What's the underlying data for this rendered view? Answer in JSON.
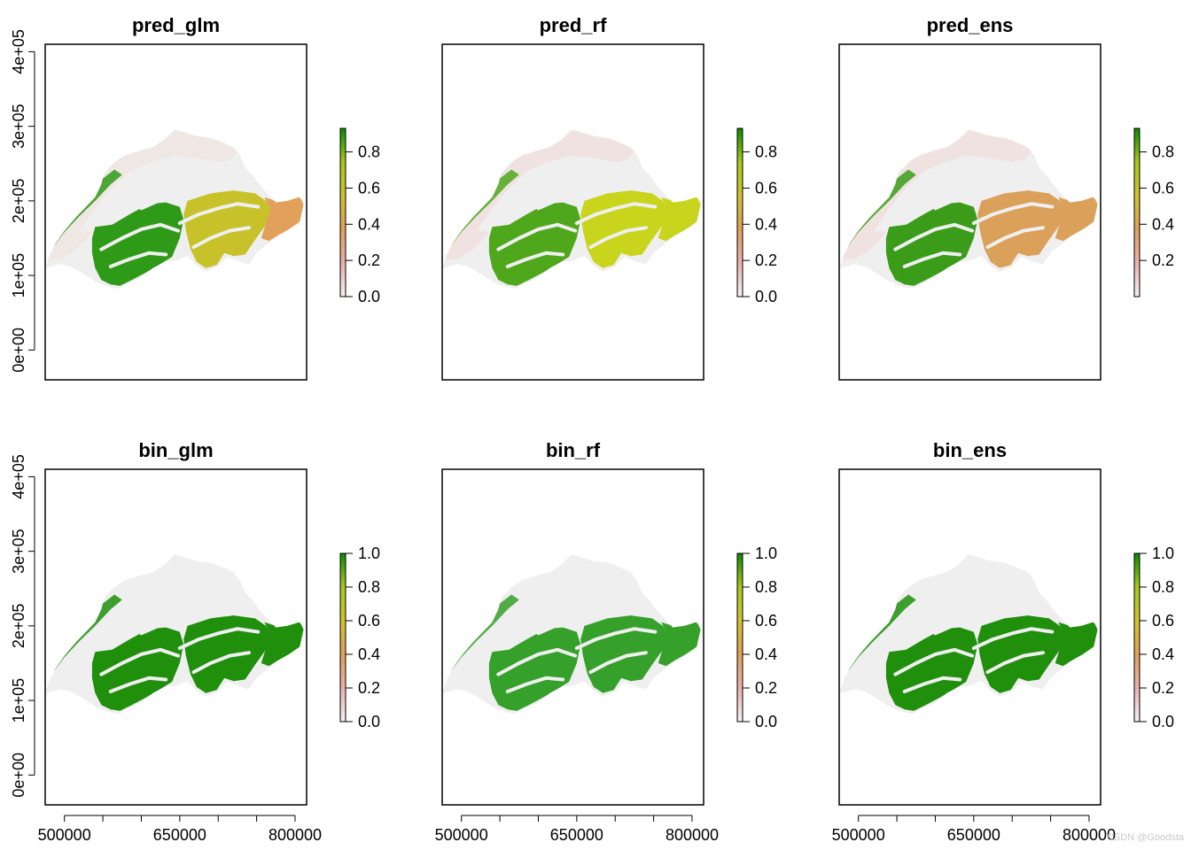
{
  "figure": {
    "watermark": "CSDN @Goodsta"
  },
  "chart_data": [
    {
      "type": "raster_map",
      "title": "pred_glm",
      "xlabel": "",
      "ylabel": "",
      "xlim": [
        475000,
        815000
      ],
      "ylim": [
        -40000,
        410000
      ],
      "xticks": [
        500000,
        550000,
        600000,
        650000,
        700000,
        750000,
        800000
      ],
      "xtick_labels": [
        "500000",
        "",
        "",
        "650000",
        "",
        "",
        "800000"
      ],
      "yticks": [
        0,
        100000,
        200000,
        300000,
        400000
      ],
      "ytick_labels": [
        "0e+00",
        "1e+05",
        "2e+05",
        "3e+05",
        "4e+05"
      ],
      "show_xaxis": false,
      "show_yaxis": true,
      "legend": {
        "type": "continuous",
        "min": 0.0,
        "max": 0.93,
        "ticks": [
          0.0,
          0.2,
          0.4,
          0.6,
          0.8
        ],
        "tick_labels": [
          "0.0",
          "0.2",
          "0.4",
          "0.6",
          "0.8"
        ],
        "colors": [
          "#f2f2f2",
          "#eab2ad",
          "#e2a15a",
          "#d1c42c",
          "#a9c81c",
          "#0b8a00"
        ]
      },
      "fill": {
        "northwest": "#efe7e4",
        "plateau": "#efefef",
        "south_west": "#2f9a18",
        "south_east": "#c7c22a",
        "east": "#e2a15a"
      }
    },
    {
      "type": "raster_map",
      "title": "pred_rf",
      "xlabel": "",
      "ylabel": "",
      "xlim": [
        475000,
        815000
      ],
      "ylim": [
        -40000,
        410000
      ],
      "xticks": [
        500000,
        550000,
        600000,
        650000,
        700000,
        750000,
        800000
      ],
      "xtick_labels": [
        "500000",
        "",
        "",
        "650000",
        "",
        "",
        "800000"
      ],
      "yticks": [
        0,
        100000,
        200000,
        300000,
        400000
      ],
      "ytick_labels": [
        "0e+00",
        "1e+05",
        "2e+05",
        "3e+05",
        "4e+05"
      ],
      "show_xaxis": false,
      "show_yaxis": false,
      "legend": {
        "type": "continuous",
        "min": 0.0,
        "max": 0.93,
        "ticks": [
          0.0,
          0.2,
          0.4,
          0.6,
          0.8
        ],
        "tick_labels": [
          "0.0",
          "0.2",
          "0.4",
          "0.6",
          "0.8"
        ],
        "colors": [
          "#f2f2f2",
          "#eab2ad",
          "#e2a15a",
          "#d1c42c",
          "#a9c81c",
          "#0b8a00"
        ]
      },
      "fill": {
        "northwest": "#efe2e0",
        "plateau": "#efefef",
        "south_west": "#4fa71c",
        "south_east": "#c9d41c",
        "east": "#c9d41c"
      }
    },
    {
      "type": "raster_map",
      "title": "pred_ens",
      "xlabel": "",
      "ylabel": "",
      "xlim": [
        475000,
        815000
      ],
      "ylim": [
        -40000,
        410000
      ],
      "xticks": [
        500000,
        550000,
        600000,
        650000,
        700000,
        750000,
        800000
      ],
      "xtick_labels": [
        "500000",
        "",
        "",
        "650000",
        "",
        "",
        "800000"
      ],
      "yticks": [
        0,
        100000,
        200000,
        300000,
        400000
      ],
      "ytick_labels": [
        "0e+00",
        "1e+05",
        "2e+05",
        "3e+05",
        "4e+05"
      ],
      "show_xaxis": false,
      "show_yaxis": false,
      "legend": {
        "type": "continuous",
        "min": 0.0,
        "max": 0.93,
        "ticks": [
          0.2,
          0.4,
          0.6,
          0.8
        ],
        "tick_labels": [
          "0.2",
          "0.4",
          "0.6",
          "0.8"
        ],
        "colors": [
          "#f2f2f2",
          "#eab2ad",
          "#e2a15a",
          "#d1c42c",
          "#a9c81c",
          "#0b8a00"
        ]
      },
      "fill": {
        "northwest": "#efe2e0",
        "plateau": "#efefef",
        "south_west": "#3a9c18",
        "south_east": "#dba05a",
        "east": "#dba05a"
      }
    },
    {
      "type": "raster_map",
      "title": "bin_glm",
      "xlabel": "",
      "ylabel": "",
      "xlim": [
        475000,
        815000
      ],
      "ylim": [
        -40000,
        410000
      ],
      "xticks": [
        500000,
        550000,
        600000,
        650000,
        700000,
        750000,
        800000
      ],
      "xtick_labels": [
        "500000",
        "",
        "",
        "650000",
        "",
        "",
        "800000"
      ],
      "yticks": [
        0,
        100000,
        200000,
        300000,
        400000
      ],
      "ytick_labels": [
        "0e+00",
        "1e+05",
        "2e+05",
        "3e+05",
        "4e+05"
      ],
      "show_xaxis": true,
      "show_yaxis": true,
      "legend": {
        "type": "continuous",
        "min": 0.0,
        "max": 1.0,
        "ticks": [
          0.0,
          0.2,
          0.4,
          0.6,
          0.8,
          1.0
        ],
        "tick_labels": [
          "0.0",
          "0.2",
          "0.4",
          "0.6",
          "0.8",
          "1.0"
        ],
        "colors": [
          "#f2f2f2",
          "#eab2ad",
          "#e2a15a",
          "#d1c42c",
          "#a9c81c",
          "#0b8a00"
        ]
      },
      "fill": {
        "northwest": "#efefef",
        "plateau": "#efefef",
        "south_west": "#1f8f0c",
        "south_east": "#1f8f0c",
        "east": "#1f8f0c"
      }
    },
    {
      "type": "raster_map",
      "title": "bin_rf",
      "xlabel": "",
      "ylabel": "",
      "xlim": [
        475000,
        815000
      ],
      "ylim": [
        -40000,
        410000
      ],
      "xticks": [
        500000,
        550000,
        600000,
        650000,
        700000,
        750000,
        800000
      ],
      "xtick_labels": [
        "500000",
        "",
        "",
        "650000",
        "",
        "",
        "800000"
      ],
      "yticks": [
        0,
        100000,
        200000,
        300000,
        400000
      ],
      "ytick_labels": [
        "0e+00",
        "1e+05",
        "2e+05",
        "3e+05",
        "4e+05"
      ],
      "show_xaxis": true,
      "show_yaxis": false,
      "legend": {
        "type": "continuous",
        "min": 0.0,
        "max": 1.0,
        "ticks": [
          0.0,
          0.2,
          0.4,
          0.6,
          0.8,
          1.0
        ],
        "tick_labels": [
          "0.0",
          "0.2",
          "0.4",
          "0.6",
          "0.8",
          "1.0"
        ],
        "colors": [
          "#f2f2f2",
          "#eab2ad",
          "#e2a15a",
          "#d1c42c",
          "#a9c81c",
          "#0b8a00"
        ]
      },
      "fill": {
        "northwest": "#efefef",
        "plateau": "#efefef",
        "south_west": "#35a02a",
        "south_east": "#35a02a",
        "east": "#35a02a"
      }
    },
    {
      "type": "raster_map",
      "title": "bin_ens",
      "xlabel": "",
      "ylabel": "",
      "xlim": [
        475000,
        815000
      ],
      "ylim": [
        -40000,
        410000
      ],
      "xticks": [
        500000,
        550000,
        600000,
        650000,
        700000,
        750000,
        800000
      ],
      "xtick_labels": [
        "500000",
        "",
        "",
        "650000",
        "",
        "",
        "800000"
      ],
      "yticks": [
        0,
        100000,
        200000,
        300000,
        400000
      ],
      "ytick_labels": [
        "0e+00",
        "1e+05",
        "2e+05",
        "3e+05",
        "4e+05"
      ],
      "show_xaxis": true,
      "show_yaxis": false,
      "legend": {
        "type": "continuous",
        "min": 0.0,
        "max": 1.0,
        "ticks": [
          0.0,
          0.2,
          0.4,
          0.6,
          0.8,
          1.0
        ],
        "tick_labels": [
          "0.0",
          "0.2",
          "0.4",
          "0.6",
          "0.8",
          "1.0"
        ],
        "colors": [
          "#f2f2f2",
          "#eab2ad",
          "#e2a15a",
          "#d1c42c",
          "#a9c81c",
          "#0b8a00"
        ]
      },
      "fill": {
        "northwest": "#efefef",
        "plateau": "#efefef",
        "south_west": "#1f8f0c",
        "south_east": "#1f8f0c",
        "east": "#1f8f0c"
      }
    }
  ]
}
